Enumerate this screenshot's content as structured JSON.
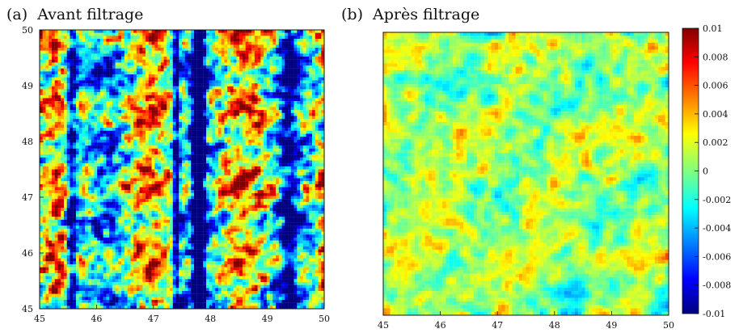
{
  "chart_data": [
    {
      "type": "heatmap",
      "panel_label": "(a)",
      "title": "Avant filtrage",
      "xlabel": "",
      "ylabel": "",
      "xlim": [
        45,
        50
      ],
      "ylim": [
        45,
        50
      ],
      "xticks": [
        45,
        46,
        47,
        48,
        49,
        50
      ],
      "yticks": [
        45,
        46,
        47,
        48,
        49,
        50
      ],
      "value_range": [
        -0.01,
        0.01
      ],
      "colormap": "jet",
      "grid": false,
      "pattern_note": "noisy field with strong vertical striping"
    },
    {
      "type": "heatmap",
      "panel_label": "(b)",
      "title": "Après filtrage",
      "xlabel": "",
      "ylabel": "",
      "xlim": [
        45,
        50
      ],
      "ylim": [
        45,
        50
      ],
      "xticks": [
        45,
        46,
        47,
        48,
        49,
        50
      ],
      "yticks": [],
      "value_range": [
        -0.01,
        0.01
      ],
      "colormap": "jet",
      "grid": false,
      "pattern_note": "smoother speckled field after filtering"
    }
  ],
  "colorbar": {
    "min": -0.01,
    "max": 0.01,
    "ticks": [
      0.01,
      0.008,
      0.006,
      0.004,
      0.002,
      0,
      -0.002,
      -0.004,
      -0.006,
      -0.008,
      -0.01
    ],
    "tick_labels": [
      "0.01",
      "0.008",
      "0.006",
      "0.004",
      "0.002",
      "0",
      "-0.002",
      "-0.004",
      "-0.006",
      "-0.008",
      "-0.01"
    ]
  },
  "colors": {
    "jet_stops": [
      "#00007f",
      "#0000ff",
      "#00ffff",
      "#ffff00",
      "#ff0000",
      "#7f0000"
    ]
  }
}
